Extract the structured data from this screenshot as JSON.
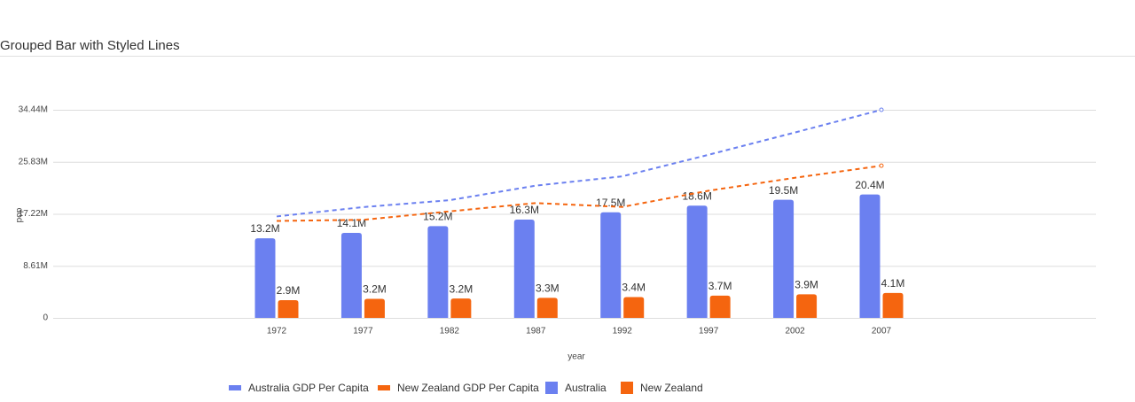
{
  "chart_data": {
    "type": "bar-line",
    "title": "Grouped Bar with Styled Lines",
    "x_label": "year",
    "y_label": "pop",
    "categories": [
      "1972",
      "1977",
      "1982",
      "1987",
      "1992",
      "1997",
      "2002",
      "2007"
    ],
    "ylim": [
      0,
      34440000
    ],
    "yticks": [
      0,
      {
        "value": 8610000,
        "label": "8.61M"
      },
      {
        "value": 17220000,
        "label": "17.22M"
      },
      {
        "value": 25830000,
        "label": "25.83M"
      },
      {
        "value": 34440000,
        "label": "34.44M"
      }
    ],
    "grid": true,
    "series": [
      {
        "name": "Australia GDP Per Capita",
        "kind": "line",
        "color": "#6b80f0",
        "values": [
          16789000,
          18334000,
          19477000,
          21889000,
          23425000,
          26998000,
          30688000,
          34435000
        ]
      },
      {
        "name": "New Zealand GDP Per Capita",
        "kind": "line",
        "color": "#f5650f",
        "values": [
          16046000,
          16234000,
          17632000,
          19007000,
          18363000,
          21050000,
          23190000,
          25185000
        ]
      },
      {
        "name": "Australia",
        "kind": "bar",
        "color": "#6b80f0",
        "values": [
          13180000,
          14070000,
          15180000,
          16260000,
          17480000,
          18570000,
          19550000,
          20430000
        ],
        "value_labels": [
          "13.2M",
          "14.1M",
          "15.2M",
          "16.3M",
          "17.5M",
          "18.6M",
          "19.5M",
          "20.4M"
        ]
      },
      {
        "name": "New Zealand",
        "kind": "bar",
        "color": "#f5650f",
        "values": [
          2930000,
          3160000,
          3210000,
          3320000,
          3440000,
          3680000,
          3910000,
          4120000
        ],
        "value_labels": [
          "2.9M",
          "3.2M",
          "3.2M",
          "3.3M",
          "3.4M",
          "3.7M",
          "3.9M",
          "4.1M"
        ]
      }
    ]
  }
}
